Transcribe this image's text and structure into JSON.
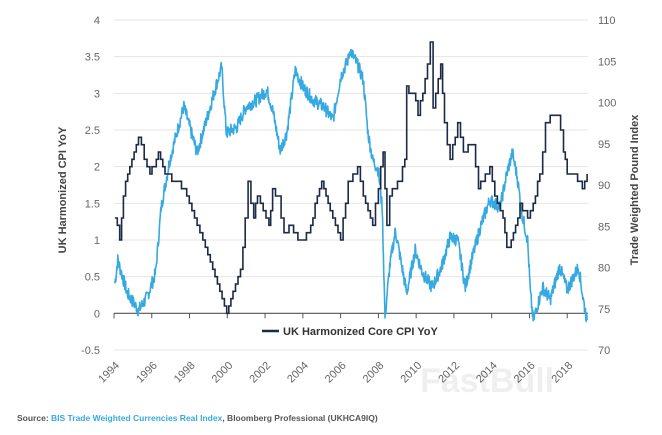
{
  "chart_data": {
    "type": "line",
    "title": "",
    "xlabel": "",
    "ylabel": "UK Harmonized CPI YoY",
    "ylabel_right": "Trade Weighted Pound Index",
    "xlim": [
      1994,
      2019.1
    ],
    "ylim": [
      -0.5,
      4
    ],
    "ylim_right": [
      70,
      110
    ],
    "grid": true,
    "legend_placement": "bottom-center",
    "x_ticks": [
      "1994",
      "1996",
      "1998",
      "2000",
      "2002",
      "2004",
      "2006",
      "2008",
      "2010",
      "2012",
      "2014",
      "2016",
      "2018"
    ],
    "y_ticks": [
      "4",
      "3.5",
      "3",
      "2.5",
      "2",
      "1.5",
      "1",
      "0.5",
      "0",
      "-0.5"
    ],
    "y_ticks_right": [
      "110",
      "105",
      "100",
      "95",
      "90",
      "85",
      "80",
      "75",
      "70"
    ],
    "series": [
      {
        "name": "UK Harmonized Core CPI YoY",
        "axis": "left",
        "color": "#1b2a47",
        "x": [
          1994.05,
          1994.3,
          1994.5,
          1994.95,
          1995.3,
          1995.6,
          1995.9,
          1996.35,
          1996.7,
          1997.3,
          1997.85,
          1998.4,
          1998.7,
          1999.1,
          1999.6,
          1999.97,
          2000.3,
          2000.7,
          2000.95,
          2001.1,
          2001.4,
          2001.6,
          2001.9,
          2002.2,
          2002.4,
          2002.7,
          2003.0,
          2003.4,
          2003.85,
          2004.3,
          2004.65,
          2005.0,
          2005.45,
          2006.0,
          2006.4,
          2006.9,
          2007.2,
          2007.7,
          2008.0,
          2008.25,
          2008.45,
          2008.6,
          2009.15,
          2009.4,
          2009.5,
          2009.85,
          2010.1,
          2010.6,
          2010.75,
          2010.9,
          2011.3,
          2011.5,
          2011.8,
          2012.2,
          2012.5,
          2013.0,
          2013.3,
          2013.9,
          2014.3,
          2014.6,
          2014.8,
          2015.15,
          2015.5,
          2015.9,
          2016.2,
          2016.55,
          2016.85,
          2017.1,
          2017.5,
          2017.8,
          2018.0,
          2018.3,
          2018.8,
          2019.05
        ],
        "y": [
          1.3,
          1.0,
          1.64,
          2.13,
          2.39,
          2.13,
          1.9,
          2.18,
          1.9,
          1.8,
          1.6,
          1.18,
          0.96,
          0.72,
          0.32,
          -0.02,
          0.27,
          0.55,
          1.27,
          1.79,
          1.27,
          1.64,
          1.36,
          1.18,
          1.68,
          1.55,
          1.09,
          1.18,
          1.0,
          1.09,
          1.45,
          1.79,
          1.41,
          1.0,
          1.77,
          2.0,
          1.64,
          1.23,
          1.72,
          2.18,
          1.23,
          1.64,
          1.82,
          2.13,
          3.05,
          3.0,
          2.73,
          3.36,
          3.68,
          2.82,
          3.36,
          2.55,
          2.13,
          2.59,
          2.23,
          2.27,
          1.72,
          1.95,
          1.45,
          1.31,
          0.86,
          1.09,
          1.45,
          1.31,
          1.45,
          1.9,
          2.55,
          2.68,
          2.68,
          2.23,
          1.9,
          1.9,
          1.72,
          1.9
        ]
      },
      {
        "axis": "right",
        "color": "#36a9e1",
        "x": [
          1994.05,
          1994.2,
          1994.7,
          1995.3,
          1995.75,
          1996.2,
          1996.5,
          1996.95,
          1997.4,
          1997.7,
          1998.4,
          1998.9,
          1999.45,
          1999.7,
          1999.95,
          2000.5,
          2001.0,
          2001.55,
          2002.1,
          2002.4,
          2002.8,
          2003.15,
          2003.6,
          2004.0,
          2004.55,
          2005.1,
          2005.6,
          2006.0,
          2006.4,
          2006.5,
          2006.95,
          2007.2,
          2007.45,
          2007.7,
          2008.0,
          2008.2,
          2008.35,
          2008.6,
          2008.9,
          2009.15,
          2009.5,
          2009.95,
          2010.35,
          2010.85,
          2011.35,
          2011.8,
          2012.2,
          2012.6,
          2012.85,
          2013.4,
          2013.9,
          2014.45,
          2014.8,
          2015.1,
          2015.35,
          2015.6,
          2015.9,
          2016.05,
          2016.2,
          2016.7,
          2017.1,
          2017.6,
          2018.0,
          2018.6,
          2018.85,
          2019.05
        ],
        "y": [
          78.1,
          80.9,
          76.9,
          74.8,
          76.4,
          79.3,
          87.3,
          93.0,
          97.0,
          99.5,
          93.9,
          97.9,
          102.4,
          104.3,
          96.3,
          97.0,
          99.5,
          100.3,
          101.5,
          99.1,
          94.2,
          96.3,
          103.9,
          101.9,
          100.3,
          99.5,
          97.9,
          103.1,
          105.2,
          106.4,
          104.3,
          102.7,
          96.3,
          93.0,
          91.8,
          87.3,
          74.0,
          80.1,
          84.5,
          81.3,
          76.9,
          82.1,
          79.3,
          77.6,
          80.1,
          83.7,
          83.3,
          77.6,
          80.1,
          84.9,
          88.2,
          87.3,
          91.4,
          93.9,
          91.0,
          86.6,
          83.3,
          76.9,
          73.6,
          77.6,
          76.1,
          80.1,
          77.3,
          80.1,
          76.1,
          73.6
        ]
      }
    ]
  },
  "source": {
    "prefix": "Source: ",
    "link": "BIS Trade Weighted Currencies Real Index",
    "suffix": ", Bloomberg Professional (UKHCA9IQ)",
    "link_color": "#36a9e1"
  },
  "watermark": "FastBull"
}
